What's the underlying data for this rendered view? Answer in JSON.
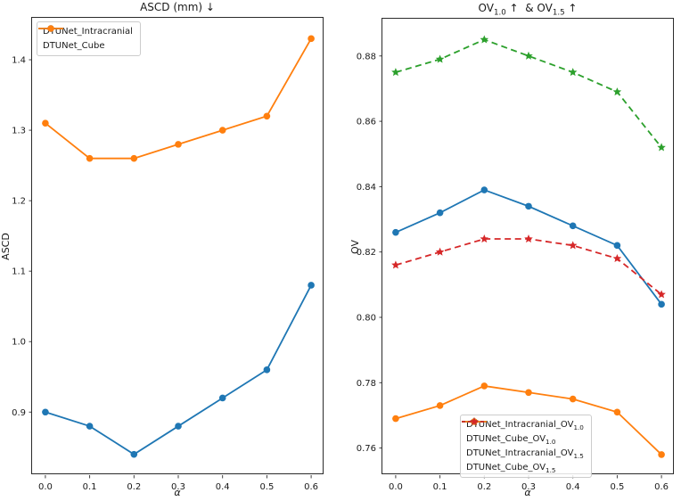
{
  "figure": {
    "background": "#ffffff",
    "text_color": "#1a1a1a",
    "spine_color": "#2b2b2b"
  },
  "chart_data": [
    {
      "type": "line",
      "title": "ASCD (mm) ↓",
      "xlabel": "α",
      "ylabel": "ASCD",
      "x": [
        0.0,
        0.1,
        0.2,
        0.3,
        0.4,
        0.5,
        0.6
      ],
      "xticks": [
        "0.0",
        "0.1",
        "0.2",
        "0.3",
        "0.4",
        "0.5",
        "0.6"
      ],
      "yticks": [
        "0.9",
        "1.0",
        "1.1",
        "1.2",
        "1.3",
        "1.4"
      ],
      "xlim": [
        -0.03,
        0.63
      ],
      "ylim": [
        0.8105,
        1.4595
      ],
      "grid": false,
      "legend_position": "upper-left",
      "series": [
        {
          "name": "DTUNet_Intracranial",
          "color": "#1f77b4",
          "linestyle": "solid",
          "marker": "circle",
          "values": [
            0.9,
            0.88,
            0.84,
            0.88,
            0.92,
            0.96,
            1.08
          ]
        },
        {
          "name": "DTUNet_Cube",
          "color": "#ff7f0e",
          "linestyle": "solid",
          "marker": "circle",
          "values": [
            1.31,
            1.26,
            1.26,
            1.28,
            1.3,
            1.32,
            1.43
          ]
        }
      ]
    },
    {
      "type": "line",
      "title": "OV_{1.0} ↑  & OV_{1.5} ↑",
      "xlabel": "α",
      "ylabel": "OV",
      "x": [
        0.0,
        0.1,
        0.2,
        0.3,
        0.4,
        0.5,
        0.6
      ],
      "xticks": [
        "0.0",
        "0.1",
        "0.2",
        "0.3",
        "0.4",
        "0.5",
        "0.6"
      ],
      "yticks": [
        "0.76",
        "0.78",
        "0.80",
        "0.82",
        "0.84",
        "0.86",
        "0.88"
      ],
      "xlim": [
        -0.03,
        0.63
      ],
      "ylim": [
        0.7517,
        0.8914
      ],
      "grid": false,
      "legend_position": "lower-center-right",
      "series": [
        {
          "name": "DTUNet_Intracranial_OV_{1.0}",
          "color": "#1f77b4",
          "linestyle": "solid",
          "marker": "circle",
          "values": [
            0.826,
            0.832,
            0.839,
            0.834,
            0.828,
            0.822,
            0.804
          ]
        },
        {
          "name": "DTUNet_Cube_OV_{1.0}",
          "color": "#ff7f0e",
          "linestyle": "solid",
          "marker": "circle",
          "values": [
            0.769,
            0.773,
            0.779,
            0.777,
            0.775,
            0.771,
            0.758
          ]
        },
        {
          "name": "DTUNet_Intracranial_OV_{1.5}",
          "color": "#2ca02c",
          "linestyle": "dashed",
          "marker": "star",
          "values": [
            0.875,
            0.879,
            0.885,
            0.88,
            0.875,
            0.869,
            0.852
          ]
        },
        {
          "name": "DTUNet_Cube_OV_{1.5}",
          "color": "#d62728",
          "linestyle": "dashed",
          "marker": "star",
          "values": [
            0.816,
            0.82,
            0.824,
            0.824,
            0.822,
            0.818,
            0.807
          ]
        }
      ]
    }
  ]
}
